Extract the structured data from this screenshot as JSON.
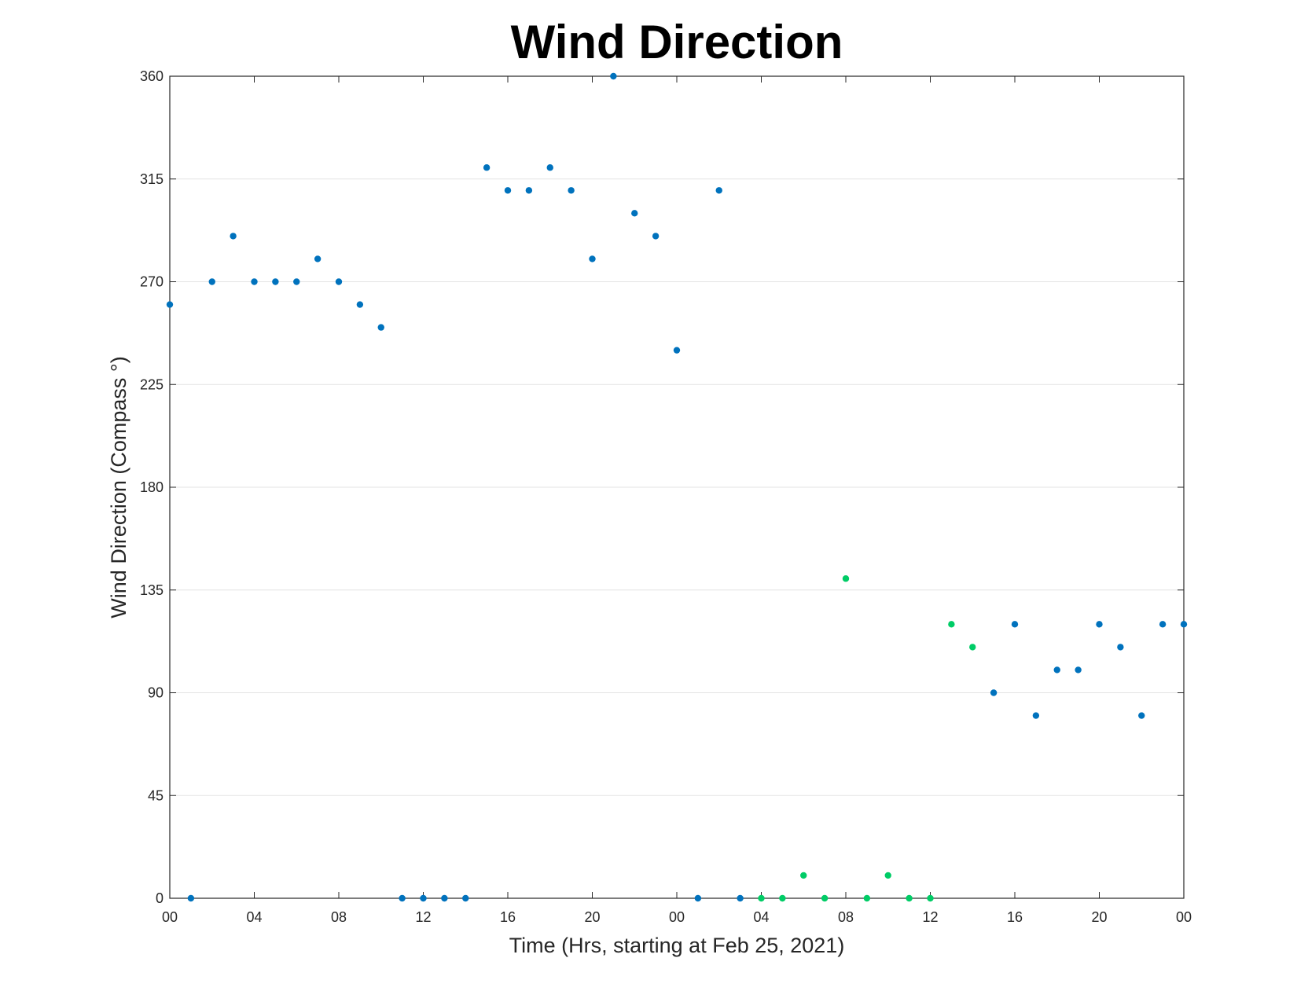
{
  "chart_data": {
    "type": "scatter",
    "title": "Wind Direction",
    "xlabel": "Time (Hrs, starting at Feb 25, 2021)",
    "ylabel": "Wind Direction (Compass °)",
    "xlim": [
      "Feb 25, 2021 00:00",
      "Feb 27, 2021 00:00"
    ],
    "ylim": [
      0,
      360
    ],
    "grid": "horizontal",
    "x_tick_labels": [
      "00",
      "04",
      "08",
      "12",
      "16",
      "20",
      "00",
      "04",
      "08",
      "12",
      "16",
      "20",
      "00"
    ],
    "y_tick_labels": [
      "0",
      "45",
      "90",
      "135",
      "180",
      "225",
      "270",
      "315",
      "360"
    ],
    "series": [
      {
        "color": "#0072BD",
        "points": [
          {
            "x": "Feb 25, 2021 00:00",
            "y": 260
          },
          {
            "x": "Feb 25, 2021 01:00",
            "y": 0
          },
          {
            "x": "Feb 25, 2021 02:00",
            "y": 270
          },
          {
            "x": "Feb 25, 2021 03:00",
            "y": 290
          },
          {
            "x": "Feb 25, 2021 04:00",
            "y": 270
          },
          {
            "x": "Feb 25, 2021 05:00",
            "y": 270
          },
          {
            "x": "Feb 25, 2021 06:00",
            "y": 270
          },
          {
            "x": "Feb 25, 2021 07:00",
            "y": 280
          },
          {
            "x": "Feb 25, 2021 08:00",
            "y": 270
          },
          {
            "x": "Feb 25, 2021 09:00",
            "y": 260
          },
          {
            "x": "Feb 25, 2021 10:00",
            "y": 250
          },
          {
            "x": "Feb 25, 2021 11:00",
            "y": 0
          },
          {
            "x": "Feb 25, 2021 12:00",
            "y": 0
          },
          {
            "x": "Feb 25, 2021 13:00",
            "y": 0
          },
          {
            "x": "Feb 25, 2021 14:00",
            "y": 0
          },
          {
            "x": "Feb 25, 2021 15:00",
            "y": 320
          },
          {
            "x": "Feb 25, 2021 16:00",
            "y": 310
          },
          {
            "x": "Feb 25, 2021 17:00",
            "y": 310
          },
          {
            "x": "Feb 25, 2021 18:00",
            "y": 320
          },
          {
            "x": "Feb 25, 2021 19:00",
            "y": 310
          },
          {
            "x": "Feb 25, 2021 20:00",
            "y": 280
          },
          {
            "x": "Feb 25, 2021 21:00",
            "y": 360
          },
          {
            "x": "Feb 25, 2021 22:00",
            "y": 300
          },
          {
            "x": "Feb 25, 2021 23:00",
            "y": 290
          },
          {
            "x": "Feb 26, 2021 00:00",
            "y": 240
          },
          {
            "x": "Feb 26, 2021 01:00",
            "y": 0
          },
          {
            "x": "Feb 26, 2021 02:00",
            "y": 310
          },
          {
            "x": "Feb 26, 2021 03:00",
            "y": 0
          },
          {
            "x": "Feb 26, 2021 15:00",
            "y": 90
          },
          {
            "x": "Feb 26, 2021 16:00",
            "y": 120
          },
          {
            "x": "Feb 26, 2021 17:00",
            "y": 80
          },
          {
            "x": "Feb 26, 2021 18:00",
            "y": 100
          },
          {
            "x": "Feb 26, 2021 19:00",
            "y": 100
          },
          {
            "x": "Feb 26, 2021 20:00",
            "y": 120
          },
          {
            "x": "Feb 26, 2021 21:00",
            "y": 110
          },
          {
            "x": "Feb 26, 2021 22:00",
            "y": 80
          },
          {
            "x": "Feb 26, 2021 23:00",
            "y": 120
          },
          {
            "x": "Feb 27, 2021 00:00",
            "y": 120
          }
        ]
      },
      {
        "color": "#00CC66",
        "points": [
          {
            "x": "Feb 26, 2021 04:00",
            "y": 0
          },
          {
            "x": "Feb 26, 2021 05:00",
            "y": 0
          },
          {
            "x": "Feb 26, 2021 06:00",
            "y": 10
          },
          {
            "x": "Feb 26, 2021 07:00",
            "y": 0
          },
          {
            "x": "Feb 26, 2021 08:00",
            "y": 140
          },
          {
            "x": "Feb 26, 2021 09:00",
            "y": 0
          },
          {
            "x": "Feb 26, 2021 10:00",
            "y": 10
          },
          {
            "x": "Feb 26, 2021 11:00",
            "y": 0
          },
          {
            "x": "Feb 26, 2021 12:00",
            "y": 0
          },
          {
            "x": "Feb 26, 2021 13:00",
            "y": 120
          },
          {
            "x": "Feb 26, 2021 14:00",
            "y": 110
          }
        ]
      }
    ]
  }
}
